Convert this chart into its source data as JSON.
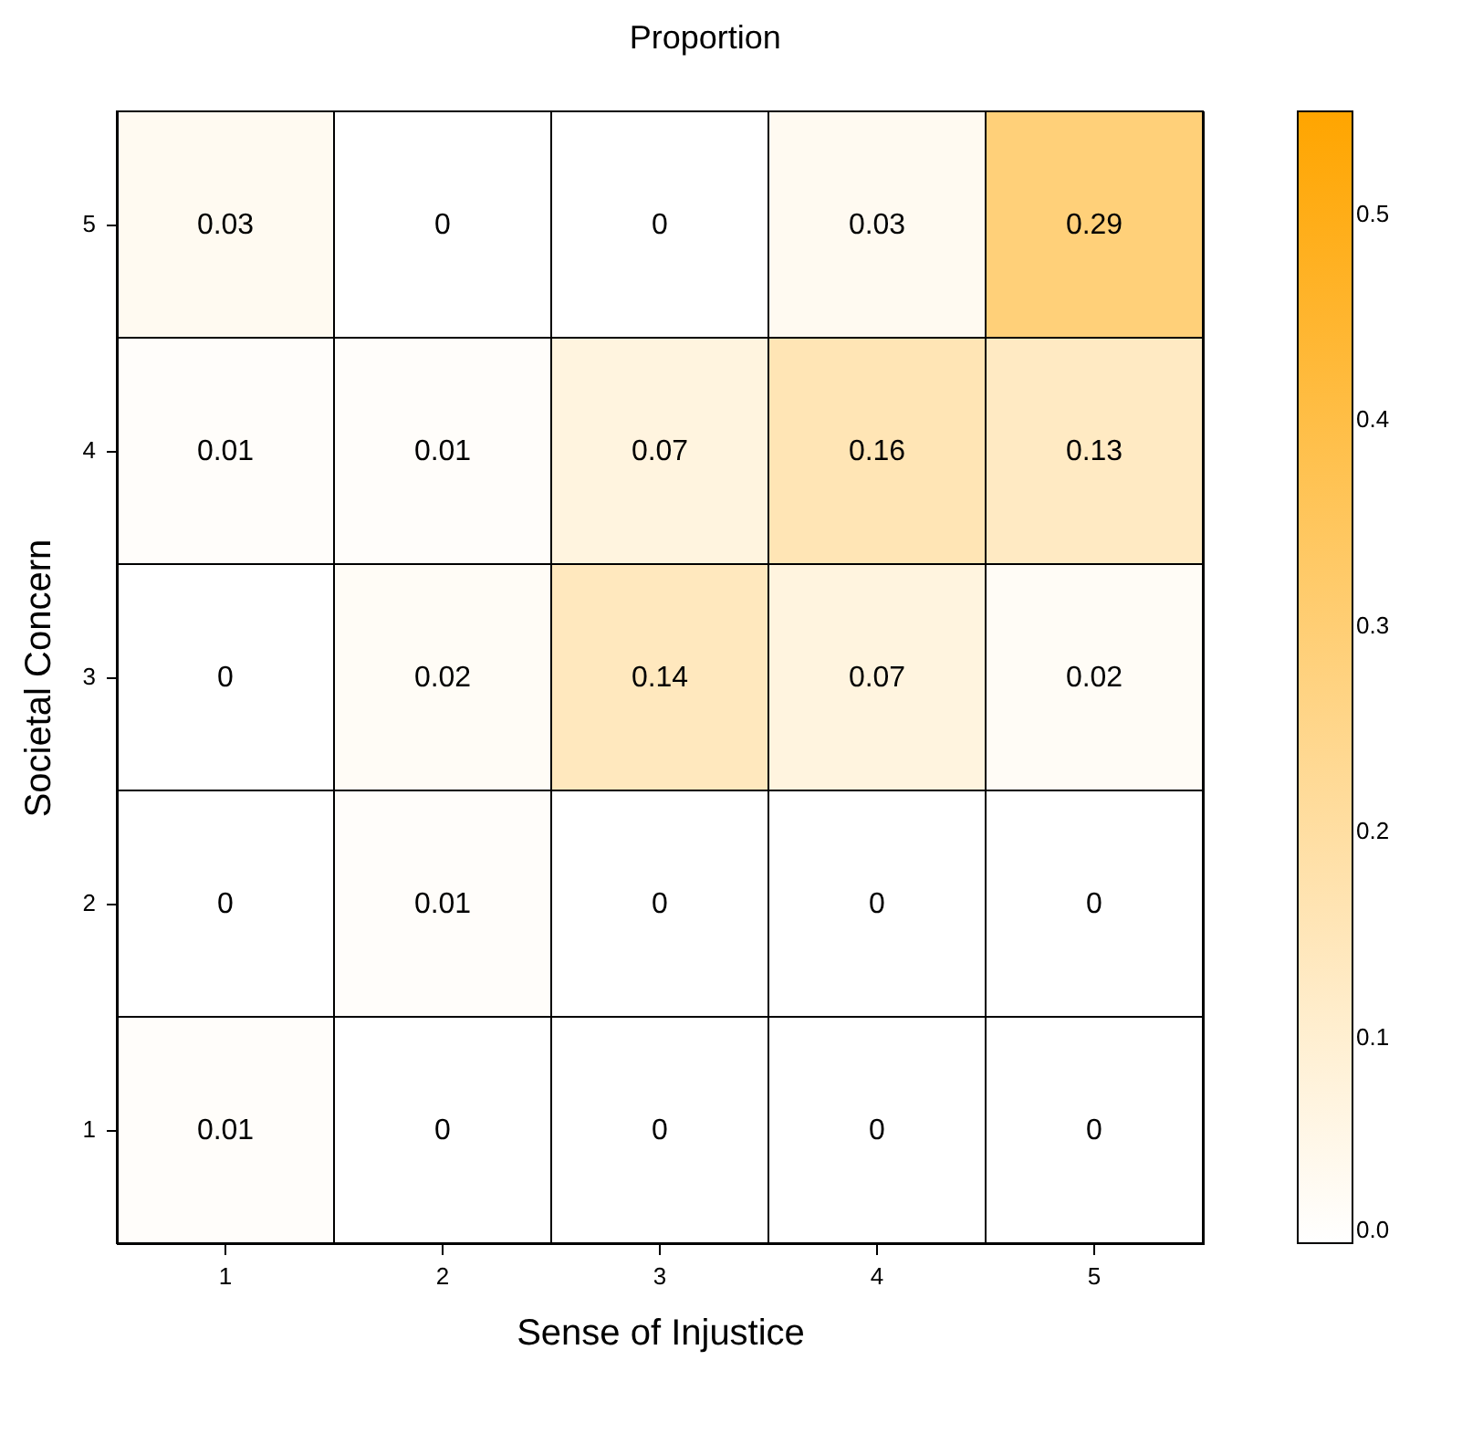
{
  "chart_data": {
    "type": "heatmap",
    "title": "Proportion",
    "xlabel": "Sense of Injustice",
    "ylabel": "Societal Concern",
    "categories": [
      "1",
      "2",
      "3",
      "4",
      "5"
    ],
    "y_categories": [
      "5",
      "4",
      "3",
      "2",
      "1"
    ],
    "cells": [
      [
        0.03,
        0,
        0,
        0.03,
        0.29
      ],
      [
        0.01,
        0.01,
        0.07,
        0.16,
        0.13
      ],
      [
        0,
        0.02,
        0.14,
        0.07,
        0.02
      ],
      [
        0,
        0.01,
        0,
        0,
        0
      ],
      [
        0.01,
        0,
        0,
        0,
        0
      ]
    ],
    "data_labels": true,
    "clim": [
      0,
      0.55
    ],
    "cticks": [
      {
        "value": 0,
        "label": "0.0"
      },
      0.1,
      0.2,
      0.3,
      0.4,
      0.5
    ],
    "colors": [
      "#ffffff",
      "#ffa500"
    ]
  }
}
